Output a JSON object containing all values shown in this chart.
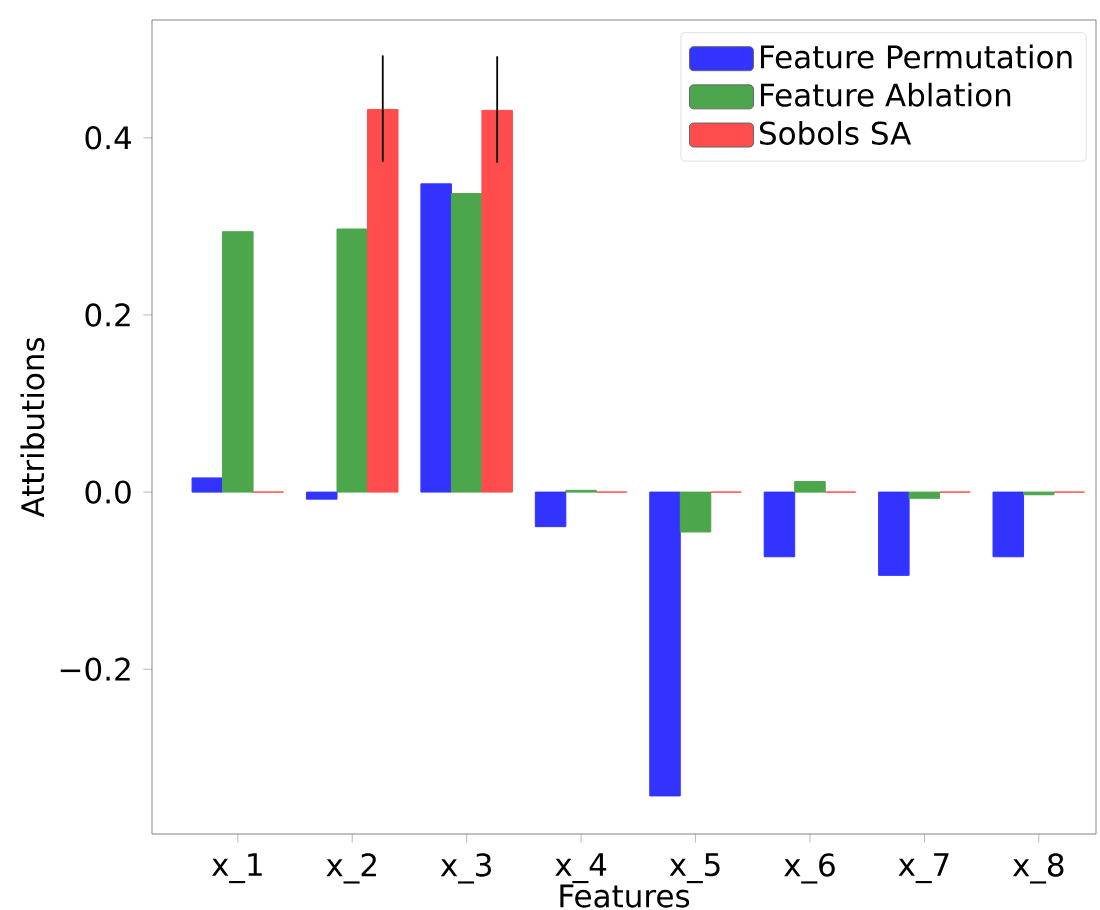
{
  "chart_data": {
    "type": "bar",
    "xlabel": "Features",
    "ylabel": "Attributions",
    "categories": [
      "x_1",
      "x_2",
      "x_3",
      "x_4",
      "x_5",
      "x_6",
      "x_7",
      "x_8"
    ],
    "series": [
      {
        "name": "Feature Permutation",
        "color": "#3333ff",
        "values": [
          0.016,
          -0.008,
          0.348,
          -0.039,
          -0.343,
          -0.073,
          -0.094,
          -0.073
        ]
      },
      {
        "name": "Feature Ablation",
        "color": "#4ca64c",
        "values": [
          0.294,
          0.297,
          0.337,
          0.002,
          -0.045,
          0.012,
          -0.007,
          -0.003
        ]
      },
      {
        "name": "Sobols SA",
        "color": "#ff4c4c",
        "values": [
          0.0,
          0.432,
          0.431,
          0.0,
          0.0,
          0.0,
          0.0,
          0.0
        ],
        "errors": [
          null,
          [
            0.373,
            0.493
          ],
          [
            0.372,
            0.492
          ],
          null,
          null,
          null,
          null,
          null
        ]
      }
    ],
    "ylim": [
      -0.386,
      0.533
    ],
    "yticks": [
      {
        "value": -0.2,
        "label": "−0.2"
      },
      {
        "value": 0.0,
        "label": "0.0"
      },
      {
        "value": 0.2,
        "label": "0.2"
      },
      {
        "value": 0.4,
        "label": "0.4"
      }
    ],
    "grid": false,
    "legend": "top right"
  }
}
